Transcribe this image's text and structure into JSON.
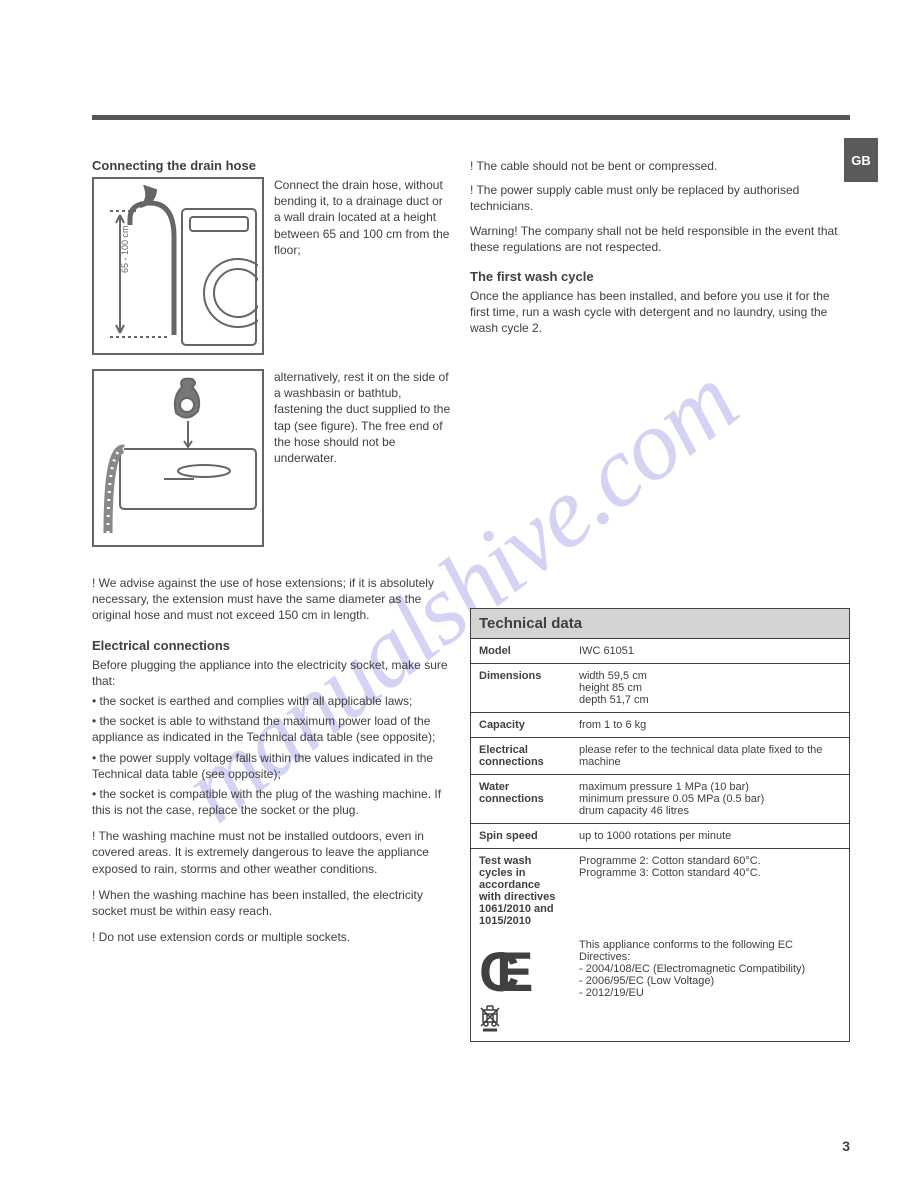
{
  "sidebar_label": "GB",
  "page_number": "3",
  "left": {
    "drain_title": "Connecting the drain hose",
    "drain_p1": "Connect the drain hose, without bending it, to a drainage duct or a wall drain located at a height between 65 and 100 cm from the floor;",
    "drain_p2": "alternatively, rest it on the side of a washbasin or bathtub, fastening the duct supplied to the tap (see figure). The free end of the hose should not be underwater.",
    "fig1_label_top": "65 - 100 cm",
    "drain_warn": "! We advise against the use of hose extensions; if it is absolutely necessary, the extension must have the same diameter as the original hose and must not exceed 150 cm in length.",
    "elec_title": "Electrical connections",
    "elec_intro": "Before plugging the appliance into the electricity socket, make sure that:",
    "elec_bullets": [
      "the socket is earthed and complies with all applicable laws;",
      "the socket is able to withstand the maximum power load of the appliance as indicated in the Technical data table (see opposite);",
      "the power supply voltage falls within the values indicated in the Technical data table (see opposite);",
      "the socket is compatible with the plug of the washing machine. If this is not the case, replace the socket or the plug."
    ],
    "elec_w1": "! The washing machine must not be installed outdoors, even in covered areas. It is extremely dangerous to leave the appliance exposed to rain, storms and other weather conditions.",
    "elec_w2": "! When the washing machine has been installed, the electricity socket must be within easy reach.",
    "elec_w3": "! Do not use extension cords or multiple sockets.",
    "notes": [
      "! The cable should not be bent or compressed.",
      "! The power supply cable must only be replaced by authorised technicians.",
      "Warning! The company shall not be held responsible in the event that these regulations are not respected."
    ],
    "first_title": "The first wash cycle",
    "first_body": "Once the appliance has been installed, and before you use it for the first time, run a wash cycle with detergent and no laundry, using the wash cycle 2."
  },
  "tech": {
    "header": "Technical data",
    "rows": [
      {
        "k": "Model",
        "v": "IWC 61051"
      },
      {
        "k": "Dimensions",
        "v": "width 59,5 cm\nheight 85 cm\ndepth 51,7 cm"
      },
      {
        "k": "Capacity",
        "v": "from 1 to 6 kg"
      },
      {
        "k": "Electrical connections",
        "v": "please refer to the technical data plate fixed to the machine"
      },
      {
        "k": "Water connections",
        "v": "maximum pressure 1 MPa (10 bar)\nminimum pressure 0.05 MPa (0.5 bar)\ndrum capacity 46 litres"
      },
      {
        "k": "Spin speed",
        "v": "up to 1000 rotations per minute"
      },
      {
        "k": "Test wash cycles in accordance with directives 1061/2010 and 1015/2010",
        "v": "Programme 2: Cotton standard 60°C.\nProgramme 3: Cotton standard 40°C."
      }
    ],
    "ce_text": "This appliance conforms to the following EC Directives:\n- 2004/108/EC (Electromagnetic Compatibility)\n- 2006/95/EC (Low Voltage)\n- 2012/19/EU"
  },
  "colors": {
    "rule": "#575757",
    "tab": "#5a5a5a",
    "tableHeader": "#d4d4d4",
    "text": "#404040",
    "border": "#404040"
  }
}
